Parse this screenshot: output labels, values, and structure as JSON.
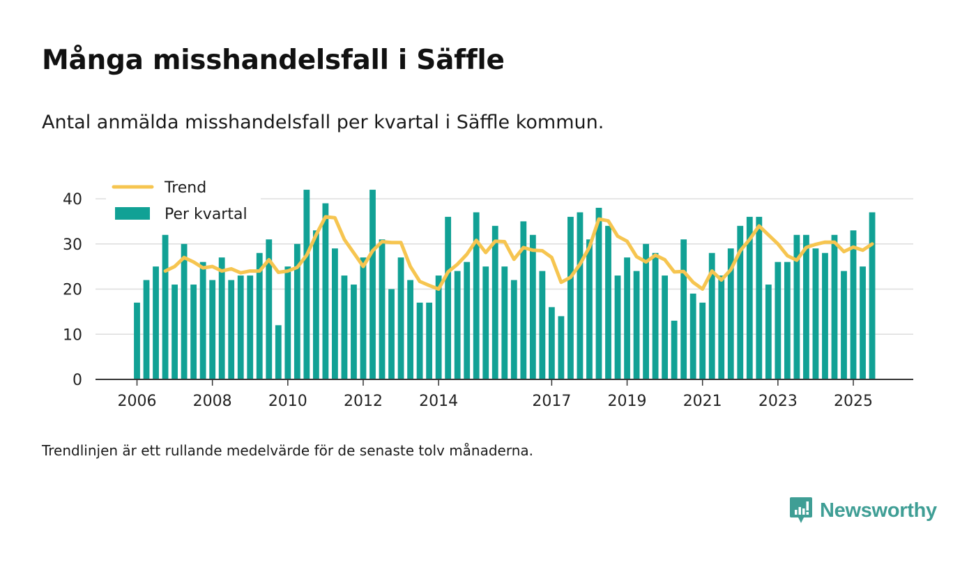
{
  "title": "Många misshandelsfall i Säffle",
  "subtitle": "Antal anmälda misshandelsfall per kvartal i Säffle kommun.",
  "footnote": "Trendlinjen är ett rullande medelvärde för de senaste tolv månaderna.",
  "brand": {
    "name": "Newsworthy",
    "color": "#3f9e95"
  },
  "colors": {
    "bar": "#11a195",
    "trend": "#f6c550",
    "grid": "#dddddd",
    "axis": "#333333"
  },
  "chart_data": {
    "type": "bar",
    "title": "Många misshandelsfall i Säffle",
    "xlabel": "",
    "ylabel": "",
    "ylim": [
      0,
      40
    ],
    "yticks": [
      0,
      10,
      20,
      30,
      40
    ],
    "x_tick_labels": [
      {
        "label": "2006",
        "year": 2006
      },
      {
        "label": "2008",
        "year": 2008
      },
      {
        "label": "2010",
        "year": 2010
      },
      {
        "label": "2012",
        "year": 2012
      },
      {
        "label": "2014",
        "year": 2014
      },
      {
        "label": "2017",
        "year": 2017
      },
      {
        "label": "2019",
        "year": 2019
      },
      {
        "label": "2021",
        "year": 2021
      },
      {
        "label": "2023",
        "year": 2023
      },
      {
        "label": "2025",
        "year": 2025
      }
    ],
    "legend_position": "top-left",
    "series": [
      {
        "name": "Per kvartal",
        "type": "bar",
        "start_year": 2006,
        "values": [
          17,
          22,
          25,
          32,
          21,
          30,
          21,
          26,
          22,
          27,
          22,
          23,
          23,
          28,
          31,
          12,
          25,
          30,
          42,
          33,
          39,
          29,
          23,
          21,
          27,
          42,
          31,
          20,
          27,
          22,
          17,
          17,
          23,
          36,
          24,
          26,
          37,
          25,
          34,
          25,
          22,
          35,
          32,
          24,
          16,
          14,
          36,
          37,
          31,
          38,
          34,
          23,
          27,
          24,
          30,
          28,
          23,
          13,
          31,
          19,
          17,
          28,
          23,
          29,
          34,
          36,
          36,
          21,
          26,
          26,
          32,
          32,
          29,
          28,
          32,
          24,
          33,
          25,
          37
        ]
      },
      {
        "name": "Trend",
        "type": "line",
        "start_index": 3,
        "values": [
          24,
          25,
          27,
          26,
          24.7,
          25,
          24,
          24.5,
          23.6,
          24,
          24,
          26.5,
          23.7,
          24,
          24.8,
          27.5,
          32,
          36,
          35.8,
          31,
          28,
          25,
          28.5,
          30.5,
          30.3,
          30.3,
          25,
          21.7,
          20.8,
          20,
          23.8,
          25.5,
          27.7,
          30.8,
          28.1,
          30.6,
          30.5,
          26.6,
          29.2,
          28.6,
          28.5,
          27,
          21.5,
          22.6,
          25.5,
          29.3,
          35.5,
          35.1,
          31.7,
          30.6,
          27.2,
          26,
          27.5,
          26.5,
          23.8,
          23.9,
          21.5,
          20,
          24,
          22,
          24.3,
          28.5,
          31,
          34,
          32,
          30,
          27.4,
          26.4,
          29.2,
          29.9,
          30.4,
          30.4,
          28.3,
          29.3,
          28.6,
          30
        ]
      }
    ]
  }
}
